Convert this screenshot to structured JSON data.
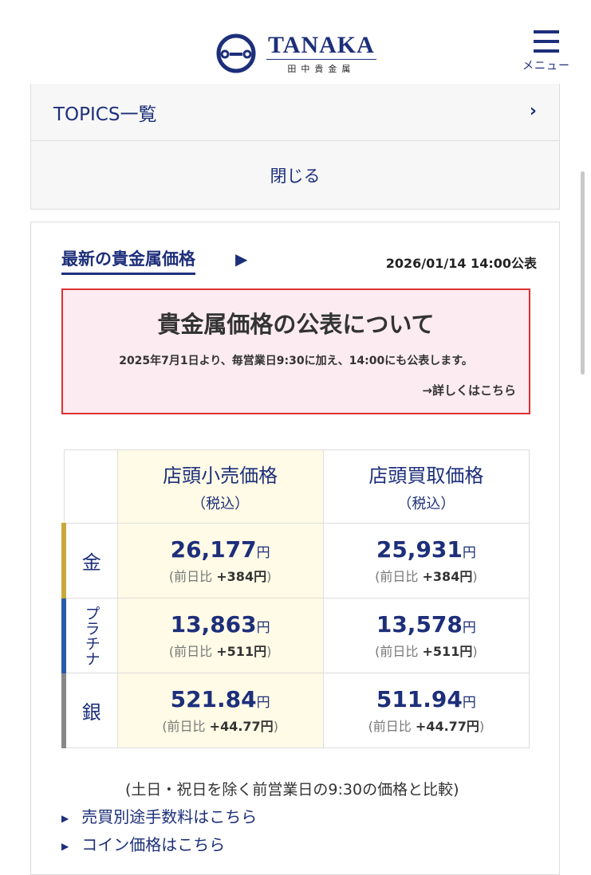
{
  "header": {
    "logo_en": "TANAKA",
    "logo_jp": "田中貴金属",
    "menu_label": "メニュー",
    "brand_color": "#1d2f7a"
  },
  "nav": {
    "topics_label": "TOPICS一覧",
    "close_label": "閉じる"
  },
  "prices": {
    "title": "最新の貴金属価格",
    "published": "2026/01/14 14:00公表",
    "notice": {
      "title": "貴金属価格の公表について",
      "text": "2025年7月1日より、毎営業日9:30に加え、14:00にも公表します。",
      "link": "→詳しくはこちら"
    },
    "columns": [
      {
        "label": "店頭小売価格",
        "sub": "（税込）"
      },
      {
        "label": "店頭買取価格",
        "sub": "（税込）"
      }
    ],
    "diff_label": "(前日比",
    "unit": "円",
    "rows": [
      {
        "metal": "金",
        "color": "#c9a93c",
        "retail": "26,177",
        "retail_diff": "+384円",
        "buy": "25,931",
        "buy_diff": "+384円"
      },
      {
        "metal": "プラチナ",
        "color": "#2a5aa8",
        "retail": "13,863",
        "retail_diff": "+511円",
        "buy": "13,578",
        "buy_diff": "+511円"
      },
      {
        "metal": "銀",
        "color": "#888888",
        "retail": "521.84",
        "retail_diff": "+44.77円",
        "buy": "511.94",
        "buy_diff": "+44.77円"
      }
    ],
    "compare_note": "(土日・祝日を除く前営業日の9:30の価格と比較)",
    "links": [
      "売買別途手数料はこちら",
      "コイン価格はこちら"
    ]
  }
}
